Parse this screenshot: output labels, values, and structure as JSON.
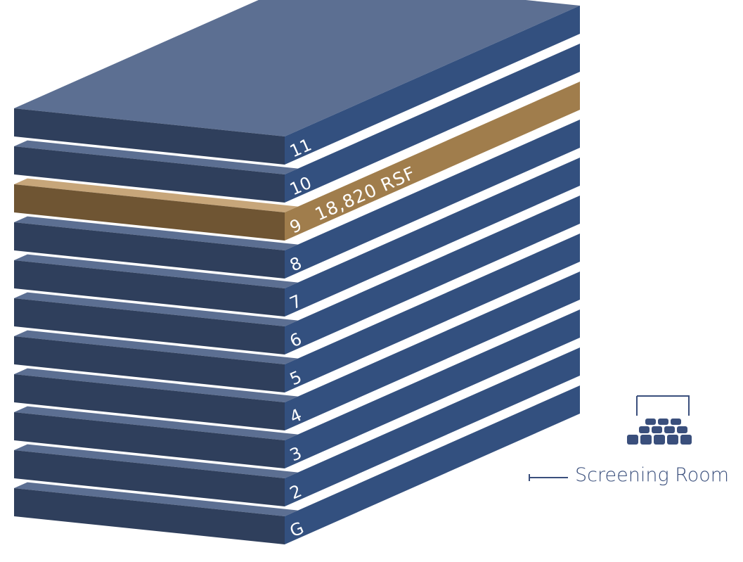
{
  "colors": {
    "top": "#5c6f92",
    "front": "#2f3f5c",
    "side": "#33507f",
    "highlight_top": "#c7a67a",
    "highlight_front": "#6f5533",
    "highlight_side": "#a07d4c",
    "legend": "#3a4f7c"
  },
  "floors": [
    {
      "id": "G",
      "label": "G",
      "highlight": false
    },
    {
      "id": "2",
      "label": "2",
      "highlight": false
    },
    {
      "id": "3",
      "label": "3",
      "highlight": false
    },
    {
      "id": "4",
      "label": "4",
      "highlight": false
    },
    {
      "id": "5",
      "label": "5",
      "highlight": false
    },
    {
      "id": "6",
      "label": "6",
      "highlight": false
    },
    {
      "id": "7",
      "label": "7",
      "highlight": false
    },
    {
      "id": "8",
      "label": "8",
      "highlight": false
    },
    {
      "id": "9",
      "label": "9",
      "highlight": true,
      "area_label": "18,820 RSF"
    },
    {
      "id": "10",
      "label": "10",
      "highlight": false
    },
    {
      "id": "11",
      "label": "11",
      "highlight": false
    }
  ],
  "legend": {
    "label": "Screening Room",
    "icon": "screening-room-icon"
  }
}
